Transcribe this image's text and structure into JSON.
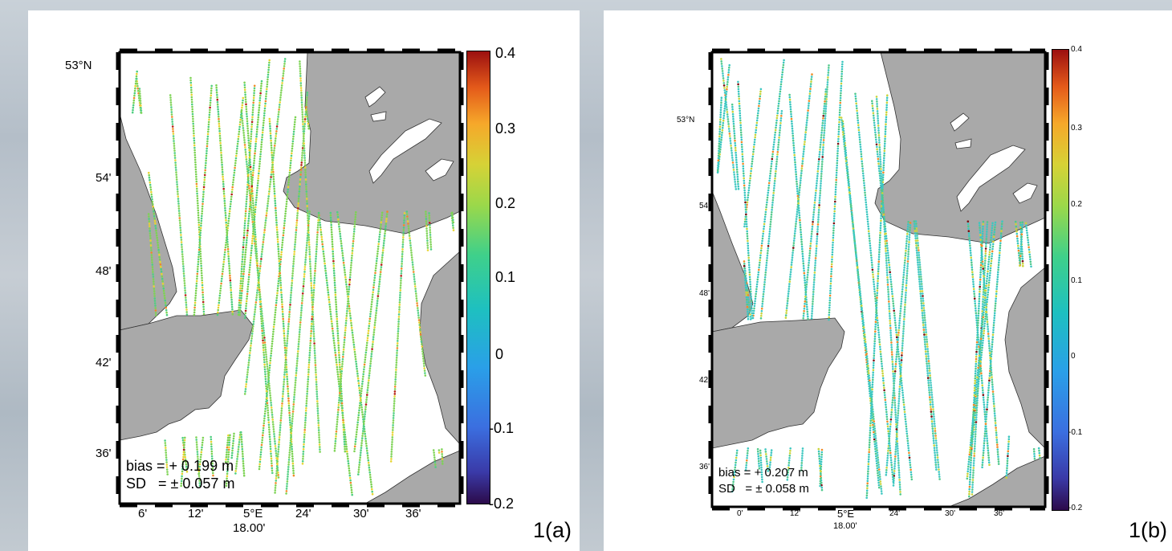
{
  "panels": [
    {
      "label": "1(a)",
      "stats": {
        "bias": "bias = + 0.199 m",
        "sd": "SD   = ± 0.057 m"
      },
      "lat_ticks": [
        "53°N",
        "54'",
        "48'",
        "42'",
        "36'"
      ],
      "lon_ticks": [
        "6'",
        "12'",
        "5°E",
        "24'",
        "30'",
        "36'"
      ],
      "lon_sub": "18.00'",
      "colorbar_ticks": [
        "0.4",
        "0.3",
        "0.2",
        "0.1",
        "0",
        "-0.1",
        "-0.2"
      ]
    },
    {
      "label": "1(b)",
      "stats": {
        "bias": "bias = + 0.207 m",
        "sd": "SD   = ± 0.058 m"
      },
      "lat_ticks": [
        "53°N",
        "54'",
        "48'",
        "42'",
        "36'"
      ],
      "lon_ticks": [
        "0'",
        "12'",
        "5°E",
        "24'",
        "30'",
        "36'"
      ],
      "lon_sub": "18.00'",
      "colorbar_ticks": [
        "0.4",
        "0.3",
        "0.2",
        "0.1",
        "0",
        "-0.1",
        "-0.2"
      ]
    }
  ],
  "colors": {
    "land": "#a9a9a9",
    "water": "#ffffff",
    "frame": "#000000"
  }
}
